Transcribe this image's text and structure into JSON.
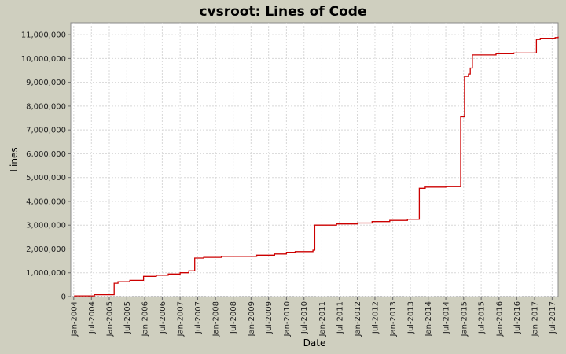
{
  "colors": {
    "background": "#cfcfbf",
    "plot_background": "#ffffff",
    "grid": "#d8d8d8",
    "series_line": "#cc0000"
  },
  "chart_data": {
    "type": "line",
    "step": true,
    "title": "cvsroot: Lines of Code",
    "xlabel": "Date",
    "ylabel": "Lines",
    "grid": true,
    "legend": "none",
    "x_ticks": [
      "Jan-2004",
      "Jul-2004",
      "Jan-2005",
      "Jul-2005",
      "Jan-2006",
      "Jul-2006",
      "Jan-2007",
      "Jul-2007",
      "Jan-2008",
      "Jul-2008",
      "Jan-2009",
      "Jul-2009",
      "Jan-2010",
      "Jul-2010",
      "Jan-2011",
      "Jul-2011",
      "Jan-2012",
      "Jul-2012",
      "Jan-2013",
      "Jul-2013",
      "Jan-2014",
      "Jul-2014",
      "Jan-2015",
      "Jul-2015",
      "Jan-2016",
      "Jul-2016",
      "Jan-2017",
      "Jul-2017"
    ],
    "y_ticks": [
      "0",
      "1,000,000",
      "2,000,000",
      "3,000,000",
      "4,000,000",
      "5,000,000",
      "6,000,000",
      "7,000,000",
      "8,000,000",
      "9,000,000",
      "10,000,000",
      "11,000,000"
    ],
    "x_range": [
      "2003-12-01",
      "2017-09-01"
    ],
    "ylim": [
      0,
      11500000
    ],
    "series": [
      {
        "points": [
          [
            "2004-01-10",
            0
          ],
          [
            "2004-01-10",
            30000
          ],
          [
            "2004-08-01",
            30000
          ],
          [
            "2004-08-01",
            80000
          ],
          [
            "2005-02-20",
            80000
          ],
          [
            "2005-02-20",
            560000
          ],
          [
            "2005-04-01",
            560000
          ],
          [
            "2005-04-01",
            620000
          ],
          [
            "2005-08-01",
            620000
          ],
          [
            "2005-08-01",
            680000
          ],
          [
            "2005-12-20",
            680000
          ],
          [
            "2005-12-20",
            850000
          ],
          [
            "2006-05-01",
            850000
          ],
          [
            "2006-05-01",
            900000
          ],
          [
            "2006-09-01",
            900000
          ],
          [
            "2006-09-01",
            950000
          ],
          [
            "2007-01-01",
            950000
          ],
          [
            "2007-01-01",
            1000000
          ],
          [
            "2007-04-01",
            1000000
          ],
          [
            "2007-04-01",
            1080000
          ],
          [
            "2007-06-01",
            1080000
          ],
          [
            "2007-06-01",
            1620000
          ],
          [
            "2007-09-01",
            1620000
          ],
          [
            "2007-09-01",
            1650000
          ],
          [
            "2008-03-01",
            1650000
          ],
          [
            "2008-03-01",
            1690000
          ],
          [
            "2009-03-01",
            1690000
          ],
          [
            "2009-03-01",
            1740000
          ],
          [
            "2009-09-01",
            1740000
          ],
          [
            "2009-09-01",
            1790000
          ],
          [
            "2010-01-01",
            1790000
          ],
          [
            "2010-01-01",
            1860000
          ],
          [
            "2010-04-01",
            1860000
          ],
          [
            "2010-04-01",
            1890000
          ],
          [
            "2010-10-01",
            1890000
          ],
          [
            "2010-10-01",
            1950000
          ],
          [
            "2010-10-20",
            1950000
          ],
          [
            "2010-10-20",
            3000000
          ],
          [
            "2011-06-01",
            3000000
          ],
          [
            "2011-06-01",
            3050000
          ],
          [
            "2012-01-01",
            3050000
          ],
          [
            "2012-01-01",
            3090000
          ],
          [
            "2012-06-01",
            3090000
          ],
          [
            "2012-06-01",
            3150000
          ],
          [
            "2012-12-01",
            3150000
          ],
          [
            "2012-12-01",
            3200000
          ],
          [
            "2013-06-01",
            3200000
          ],
          [
            "2013-06-01",
            3250000
          ],
          [
            "2013-10-01",
            3250000
          ],
          [
            "2013-10-01",
            4550000
          ],
          [
            "2013-12-01",
            4550000
          ],
          [
            "2013-12-01",
            4600000
          ],
          [
            "2014-07-01",
            4600000
          ],
          [
            "2014-07-01",
            4620000
          ],
          [
            "2014-12-01",
            4620000
          ],
          [
            "2014-12-01",
            7550000
          ],
          [
            "2015-01-10",
            7550000
          ],
          [
            "2015-01-10",
            9250000
          ],
          [
            "2015-02-20",
            9250000
          ],
          [
            "2015-02-20",
            9350000
          ],
          [
            "2015-03-10",
            9350000
          ],
          [
            "2015-03-10",
            9600000
          ],
          [
            "2015-04-01",
            9600000
          ],
          [
            "2015-04-01",
            10150000
          ],
          [
            "2015-12-01",
            10150000
          ],
          [
            "2015-12-01",
            10200000
          ],
          [
            "2016-06-01",
            10200000
          ],
          [
            "2016-06-01",
            10230000
          ],
          [
            "2017-01-20",
            10230000
          ],
          [
            "2017-01-20",
            10800000
          ],
          [
            "2017-03-01",
            10800000
          ],
          [
            "2017-03-01",
            10850000
          ],
          [
            "2017-08-01",
            10850000
          ],
          [
            "2017-08-01",
            10880000
          ],
          [
            "2017-12-01",
            10880000
          ],
          [
            "2017-12-01",
            10920000
          ],
          [
            "2018-08-01",
            10920000
          ]
        ]
      }
    ]
  }
}
